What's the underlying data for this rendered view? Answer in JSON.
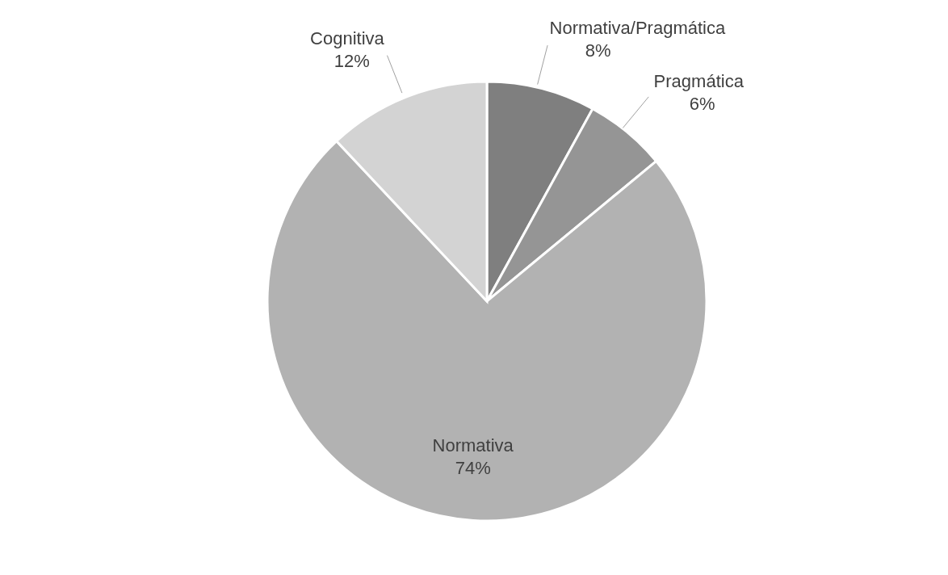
{
  "chart_data": {
    "type": "pie",
    "categories": [
      "Normativa/Pragmática",
      "Pragmática",
      "Normativa",
      "Cognitiva"
    ],
    "values": [
      8,
      6,
      74,
      12
    ],
    "colors": [
      "#7f7f7f",
      "#959595",
      "#b2b2b2",
      "#d3d3d3"
    ],
    "value_labels": [
      "8%",
      "6%",
      "74%",
      "12%"
    ]
  }
}
